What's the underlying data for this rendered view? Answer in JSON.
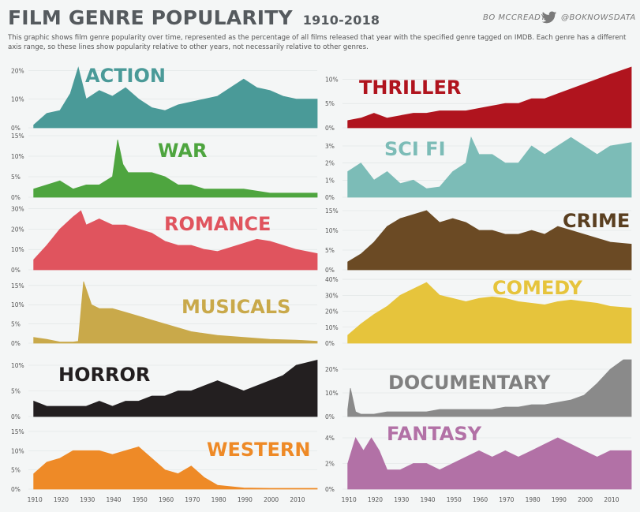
{
  "header": {
    "title": "FILM GENRE POPULARITY",
    "years": "1910-2018",
    "description": "This graphic shows film genre popularity over time, represented as the percentage of all films released that year with the specified genre tagged on IMDB. Each genre has a different axis range, so these lines show popularity relative to other years, not necessarily relative to other genres.",
    "credit_name": "BO MCCREADY",
    "credit_handle": "@BOKNOWSDATA",
    "twitter_icon": "twitter-bird-icon"
  },
  "chart_data": [
    {
      "type": "area",
      "title": "ACTION",
      "color": "#4a9a98",
      "label_color": "#4a9a98",
      "x": [
        1910,
        1915,
        1920,
        1924,
        1927,
        1930,
        1935,
        1940,
        1945,
        1950,
        1955,
        1960,
        1965,
        1970,
        1975,
        1980,
        1985,
        1990,
        1995,
        2000,
        2005,
        2010,
        2018
      ],
      "values": [
        1,
        5,
        6,
        12,
        21,
        10,
        13,
        11,
        14,
        10,
        7,
        6,
        8,
        9,
        10,
        11,
        14,
        17,
        14,
        13,
        11,
        10,
        10
      ],
      "yticks": [
        "0%",
        "10%",
        "20%"
      ],
      "ylim": [
        0,
        22
      ]
    },
    {
      "type": "area",
      "title": "THRILLER",
      "color": "#b0141e",
      "label_color": "#b0141e",
      "x": [
        1910,
        1915,
        1920,
        1925,
        1930,
        1935,
        1940,
        1945,
        1950,
        1955,
        1960,
        1965,
        1970,
        1975,
        1980,
        1985,
        1990,
        1995,
        2000,
        2005,
        2010,
        2018
      ],
      "values": [
        1.5,
        2,
        3,
        2,
        2.5,
        3,
        3,
        3.5,
        3.5,
        3.5,
        4,
        4.5,
        5,
        5,
        6,
        6,
        7,
        8,
        9,
        10,
        11,
        12.5
      ],
      "yticks": [
        "0%",
        "5%",
        "10%"
      ],
      "ylim": [
        0,
        13
      ]
    },
    {
      "type": "area",
      "title": "WAR",
      "color": "#4ea53f",
      "label_color": "#4ea53f",
      "x": [
        1910,
        1915,
        1920,
        1925,
        1930,
        1935,
        1940,
        1942,
        1944,
        1946,
        1950,
        1955,
        1960,
        1965,
        1970,
        1975,
        1980,
        1990,
        2000,
        2010,
        2018
      ],
      "values": [
        2,
        3,
        4,
        2,
        3,
        3,
        5,
        14,
        8,
        6,
        6,
        6,
        5,
        3,
        3,
        2,
        2,
        2,
        1,
        1,
        1
      ],
      "yticks": [
        "0%",
        "5%",
        "10%",
        "15%"
      ],
      "ylim": [
        0,
        15
      ]
    },
    {
      "type": "area",
      "title": "SCI FI",
      "color": "#7cbcb7",
      "label_color": "#7cbcb7",
      "x": [
        1910,
        1915,
        1920,
        1925,
        1930,
        1935,
        1940,
        1945,
        1950,
        1955,
        1957,
        1960,
        1965,
        1970,
        1975,
        1980,
        1985,
        1990,
        1995,
        2000,
        2005,
        2010,
        2018
      ],
      "values": [
        1.5,
        2,
        1,
        1.5,
        0.8,
        1,
        0.5,
        0.6,
        1.5,
        2,
        3.5,
        2.5,
        2.5,
        2,
        2,
        3,
        2.5,
        3,
        3.5,
        3,
        2.5,
        3,
        3.2
      ],
      "yticks": [
        "0%",
        "1%",
        "2%",
        "3%"
      ],
      "ylim": [
        0,
        3.6
      ]
    },
    {
      "type": "area",
      "title": "ROMANCE",
      "color": "#e0545e",
      "label_color": "#e0545e",
      "x": [
        1910,
        1915,
        1920,
        1925,
        1928,
        1930,
        1935,
        1940,
        1945,
        1950,
        1955,
        1960,
        1965,
        1970,
        1975,
        1980,
        1985,
        1990,
        1995,
        2000,
        2005,
        2010,
        2018
      ],
      "values": [
        5,
        12,
        20,
        26,
        29,
        22,
        25,
        22,
        22,
        20,
        18,
        14,
        12,
        12,
        10,
        9,
        11,
        13,
        15,
        14,
        12,
        10,
        8
      ],
      "yticks": [
        "0%",
        "10%",
        "20%",
        "30%"
      ],
      "ylim": [
        0,
        31
      ]
    },
    {
      "type": "area",
      "title": "CRIME",
      "color": "#6b4a24",
      "label_color": "#5a3f20",
      "x": [
        1910,
        1915,
        1920,
        1925,
        1930,
        1935,
        1940,
        1945,
        1950,
        1955,
        1960,
        1965,
        1970,
        1975,
        1980,
        1985,
        1990,
        1995,
        2000,
        2005,
        2010,
        2018
      ],
      "values": [
        2,
        4,
        7,
        11,
        13,
        14,
        15,
        12,
        13,
        12,
        10,
        10,
        9,
        9,
        10,
        9,
        11,
        10,
        9,
        8,
        7,
        6.5
      ],
      "yticks": [
        "0%",
        "5%",
        "10%",
        "15%"
      ],
      "ylim": [
        0,
        16
      ]
    },
    {
      "type": "area",
      "title": "MUSICALS",
      "color": "#c9a94a",
      "label_color": "#c9a94a",
      "x": [
        1910,
        1915,
        1920,
        1925,
        1927,
        1929,
        1932,
        1935,
        1940,
        1945,
        1950,
        1955,
        1960,
        1965,
        1970,
        1975,
        1980,
        1990,
        2000,
        2010,
        2018
      ],
      "values": [
        1.5,
        1,
        0.3,
        0.3,
        0.5,
        16,
        10,
        9,
        9,
        8,
        7,
        6,
        5,
        4,
        3,
        2.5,
        2,
        1.5,
        1,
        0.8,
        0.5
      ],
      "yticks": [
        "0%",
        "5%",
        "10%",
        "15%"
      ],
      "ylim": [
        0,
        17
      ]
    },
    {
      "type": "area",
      "title": "COMEDY",
      "color": "#e6c43c",
      "label_color": "#e6c43c",
      "x": [
        1910,
        1915,
        1920,
        1925,
        1930,
        1935,
        1940,
        1945,
        1950,
        1955,
        1960,
        1965,
        1970,
        1975,
        1980,
        1985,
        1990,
        1995,
        2000,
        2005,
        2010,
        2018
      ],
      "values": [
        5,
        12,
        18,
        23,
        30,
        34,
        38,
        30,
        28,
        26,
        28,
        29,
        28,
        26,
        25,
        24,
        26,
        27,
        26,
        25,
        23,
        22
      ],
      "yticks": [
        "0%",
        "10%",
        "20%",
        "30%",
        "40%"
      ],
      "ylim": [
        0,
        41
      ]
    },
    {
      "type": "area",
      "title": "HORROR",
      "color": "#231f20",
      "label_color": "#231f20",
      "x": [
        1910,
        1915,
        1920,
        1925,
        1930,
        1935,
        1940,
        1945,
        1950,
        1955,
        1960,
        1965,
        1970,
        1975,
        1980,
        1985,
        1990,
        1995,
        2000,
        2005,
        2010,
        2018
      ],
      "values": [
        3,
        2,
        2,
        2,
        2,
        3,
        2,
        3,
        3,
        4,
        4,
        5,
        5,
        6,
        7,
        6,
        5,
        6,
        7,
        8,
        10,
        11
      ],
      "yticks": [
        "0%",
        "5%",
        "10%"
      ],
      "ylim": [
        0,
        12
      ]
    },
    {
      "type": "area",
      "title": "DOCUMENTARY",
      "color": "#8a8a8a",
      "label_color": "#808080",
      "x": [
        1910,
        1911,
        1913,
        1915,
        1920,
        1925,
        1930,
        1935,
        1940,
        1945,
        1950,
        1955,
        1960,
        1965,
        1970,
        1975,
        1980,
        1985,
        1990,
        1995,
        2000,
        2005,
        2010,
        2015,
        2018
      ],
      "values": [
        3,
        12,
        2,
        1,
        1,
        2,
        2,
        2,
        2,
        3,
        3,
        3,
        3,
        3,
        4,
        4,
        5,
        5,
        6,
        7,
        9,
        14,
        20,
        24,
        24
      ],
      "yticks": [
        "0%",
        "10%",
        "20%"
      ],
      "ylim": [
        0,
        26
      ]
    },
    {
      "type": "area",
      "title": "WESTERN",
      "color": "#ee8a27",
      "label_color": "#ee8a27",
      "x": [
        1910,
        1915,
        1920,
        1925,
        1930,
        1935,
        1940,
        1945,
        1950,
        1955,
        1960,
        1965,
        1970,
        1975,
        1980,
        1990,
        2000,
        2010,
        2018
      ],
      "values": [
        4,
        7,
        8,
        10,
        10,
        10,
        9,
        10,
        11,
        8,
        5,
        4,
        6,
        3,
        1,
        0.3,
        0.2,
        0.2,
        0.2
      ],
      "yticks": [
        "0%",
        "5%",
        "10%",
        "15%"
      ],
      "ylim": [
        0,
        16
      ]
    },
    {
      "type": "area",
      "title": "FANTASY",
      "color": "#b271a6",
      "label_color": "#b271a6",
      "x": [
        1910,
        1913,
        1916,
        1919,
        1922,
        1925,
        1930,
        1935,
        1940,
        1945,
        1950,
        1955,
        1960,
        1965,
        1970,
        1975,
        1980,
        1985,
        1990,
        1995,
        2000,
        2005,
        2010,
        2018
      ],
      "values": [
        2,
        4,
        3,
        4,
        3,
        1.5,
        1.5,
        2,
        2,
        1.5,
        2,
        2.5,
        3,
        2.5,
        3,
        2.5,
        3,
        3.5,
        4,
        3.5,
        3,
        2.5,
        3,
        3
      ],
      "yticks": [
        "0%",
        "2%",
        "4%"
      ],
      "ylim": [
        0,
        4.8
      ]
    }
  ],
  "x_axis": {
    "ticks": [
      "1910",
      "1920",
      "1930",
      "1940",
      "1950",
      "1960",
      "1970",
      "1980",
      "1990",
      "2000",
      "2010"
    ],
    "range": [
      1908,
      2018
    ]
  }
}
